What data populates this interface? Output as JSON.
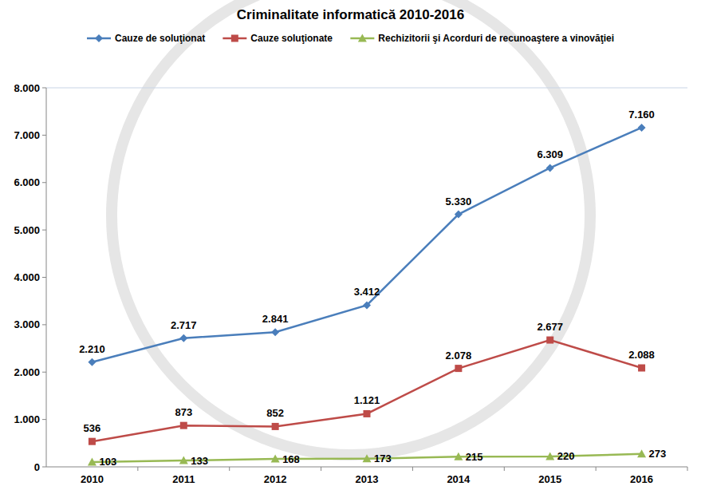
{
  "chart_data": {
    "type": "line",
    "title": "Criminalitate informatică 2010-2016",
    "categories": [
      "2010",
      "2011",
      "2012",
      "2013",
      "2014",
      "2015",
      "2016"
    ],
    "series": [
      {
        "name": "Cauze de soluţionat",
        "color": "#4a7ebb",
        "marker": "diamond",
        "values": [
          2210,
          2717,
          2841,
          3412,
          5330,
          6309,
          7160
        ],
        "value_labels": [
          "2.210",
          "2.717",
          "2.841",
          "3.412",
          "5.330",
          "6.309",
          "7.160"
        ]
      },
      {
        "name": "Cauze soluţionate",
        "color": "#be4b48",
        "marker": "square",
        "values": [
          536,
          873,
          852,
          1121,
          2078,
          2677,
          2088
        ],
        "value_labels": [
          "536",
          "873",
          "852",
          "1.121",
          "2.078",
          "2.677",
          "2.088"
        ]
      },
      {
        "name": "Rechizitorii şi Acorduri de recunoaştere a vinovăţiei",
        "color": "#98b954",
        "marker": "triangle",
        "values": [
          103,
          133,
          168,
          173,
          215,
          220,
          273
        ]
      }
    ],
    "ylim": [
      0,
      8000
    ],
    "yticks": [
      0,
      {
        "value": 1000,
        "label": "1.000"
      },
      {
        "value": 2000,
        "label": "2.000"
      },
      {
        "value": 3000,
        "label": "3.000"
      },
      {
        "value": 4000,
        "label": "4.000"
      },
      {
        "value": 5000,
        "label": "5.000"
      },
      {
        "value": 6000,
        "label": "6.000"
      },
      {
        "value": 7000,
        "label": "7.000"
      },
      {
        "value": 8000,
        "label": "8.000"
      }
    ],
    "grid": false,
    "legend": "top",
    "data_labels": true
  }
}
